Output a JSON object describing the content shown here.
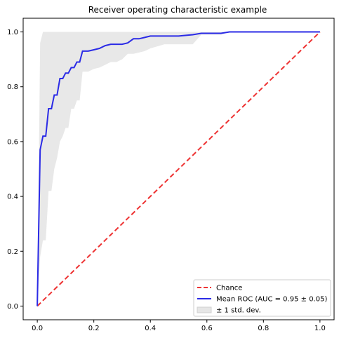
{
  "chart_data": {
    "type": "line",
    "title": "Receiver operating characteristic example",
    "xlabel": "",
    "ylabel": "",
    "xlim": [
      -0.05,
      1.05
    ],
    "ylim": [
      -0.05,
      1.05
    ],
    "x_ticks": [
      "0.0",
      "0.2",
      "0.4",
      "0.6",
      "0.8",
      "1.0"
    ],
    "y_ticks": [
      "0.0",
      "0.2",
      "0.4",
      "0.6",
      "0.8",
      "1.0"
    ],
    "grid": false,
    "legend_position": "lower-right",
    "series": [
      {
        "name": "Chance",
        "style": "dashed",
        "color": "#ee3333",
        "x": [
          0,
          1
        ],
        "y": [
          0,
          1
        ]
      },
      {
        "name": "Mean ROC (AUC = 0.95 ± 0.05)",
        "style": "solid",
        "color": "#2b2be6",
        "x": [
          0,
          0.01,
          0.02,
          0.03,
          0.04,
          0.05,
          0.06,
          0.07,
          0.08,
          0.09,
          0.1,
          0.11,
          0.12,
          0.13,
          0.14,
          0.15,
          0.16,
          0.18,
          0.2,
          0.22,
          0.24,
          0.26,
          0.28,
          0.3,
          0.32,
          0.34,
          0.36,
          0.38,
          0.4,
          0.45,
          0.5,
          0.55,
          0.58,
          0.6,
          0.65,
          0.68,
          0.7,
          0.8,
          0.9,
          1.0
        ],
        "y": [
          0,
          0.57,
          0.62,
          0.62,
          0.72,
          0.72,
          0.77,
          0.77,
          0.83,
          0.83,
          0.85,
          0.85,
          0.87,
          0.87,
          0.89,
          0.89,
          0.93,
          0.93,
          0.935,
          0.94,
          0.95,
          0.955,
          0.955,
          0.955,
          0.96,
          0.975,
          0.975,
          0.98,
          0.985,
          0.985,
          0.985,
          0.99,
          0.995,
          0.995,
          0.995,
          1.0,
          1.0,
          1.0,
          1.0,
          1.0
        ]
      }
    ],
    "band": {
      "name": "± 1 std. dev.",
      "color": "#e6e6e6",
      "x": [
        0,
        0.01,
        0.02,
        0.03,
        0.04,
        0.05,
        0.06,
        0.07,
        0.08,
        0.09,
        0.1,
        0.11,
        0.12,
        0.13,
        0.14,
        0.15,
        0.16,
        0.18,
        0.2,
        0.22,
        0.24,
        0.26,
        0.28,
        0.3,
        0.32,
        0.34,
        0.36,
        0.38,
        0.4,
        0.45,
        0.5,
        0.55,
        0.58,
        0.6,
        0.65,
        0.68,
        0.7,
        0.8,
        0.9,
        1.0
      ],
      "upper": [
        0,
        0.96,
        1.0,
        1.0,
        1.0,
        1.0,
        1.0,
        1.0,
        1.0,
        1.0,
        1.0,
        1.0,
        1.0,
        1.0,
        1.0,
        1.0,
        1.0,
        1.0,
        1.0,
        1.0,
        1.0,
        1.0,
        1.0,
        1.0,
        1.0,
        1.0,
        1.0,
        1.0,
        1.0,
        1.0,
        1.0,
        1.0,
        1.0,
        1.0,
        1.0,
        1.0,
        1.0,
        1.0,
        1.0,
        1.0
      ],
      "lower": [
        0,
        0.18,
        0.24,
        0.24,
        0.42,
        0.42,
        0.5,
        0.54,
        0.6,
        0.62,
        0.65,
        0.65,
        0.72,
        0.72,
        0.75,
        0.75,
        0.855,
        0.855,
        0.865,
        0.87,
        0.88,
        0.89,
        0.89,
        0.9,
        0.92,
        0.92,
        0.925,
        0.93,
        0.94,
        0.955,
        0.955,
        0.955,
        0.99,
        0.99,
        0.99,
        1.0,
        1.0,
        1.0,
        1.0,
        1.0
      ]
    }
  }
}
